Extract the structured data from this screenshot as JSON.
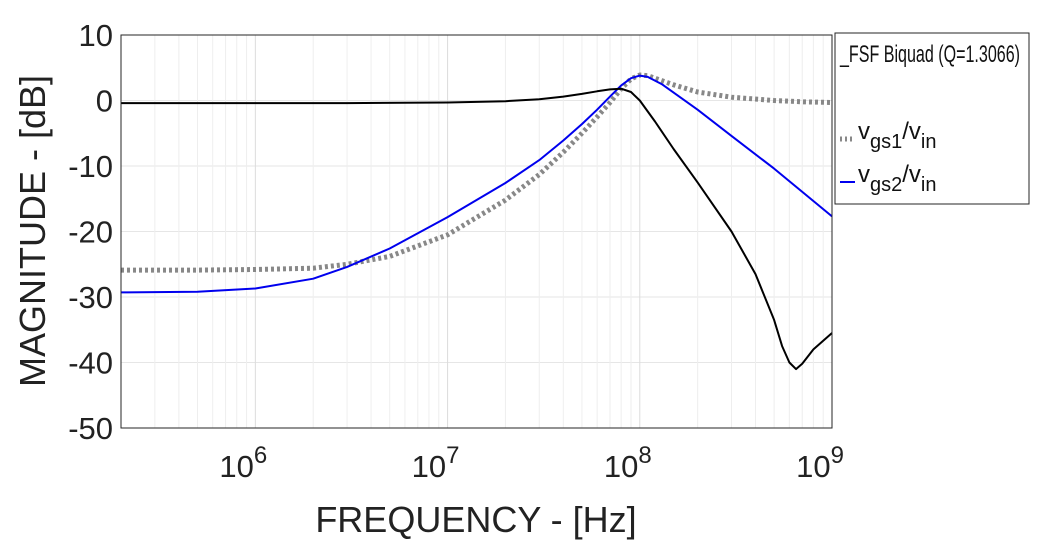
{
  "chart_data": {
    "type": "line",
    "title": "",
    "xlabel": "FREQUENCY - [Hz]",
    "ylabel": "MAGNITUDE - [dB]",
    "xscale": "log",
    "xlim": [
      200000,
      1000000000
    ],
    "ylim": [
      -50,
      10
    ],
    "grid": true,
    "legend_position": "top-right, outside plot",
    "x_ticks": [
      {
        "value": 1000000,
        "base": "10",
        "exp": "6"
      },
      {
        "value": 10000000,
        "base": "10",
        "exp": "7"
      },
      {
        "value": 100000000,
        "base": "10",
        "exp": "8"
      },
      {
        "value": 1000000000,
        "base": "10",
        "exp": "9"
      }
    ],
    "y_ticks": [
      {
        "value": 10,
        "label": "10"
      },
      {
        "value": 0,
        "label": "0"
      },
      {
        "value": -10,
        "label": "-10"
      },
      {
        "value": -20,
        "label": "-20"
      },
      {
        "value": -30,
        "label": "-30"
      },
      {
        "value": -40,
        "label": "-40"
      },
      {
        "value": -50,
        "label": "-50"
      }
    ],
    "series": [
      {
        "name": "_FSF Biquad (Q=1.3066)",
        "color": "#000000",
        "style": "solid",
        "x": [
          200000,
          1000000,
          3000000,
          10000000,
          20000000,
          30000000,
          40000000,
          50000000,
          60000000,
          70000000,
          80000000,
          90000000,
          100000000,
          120000000,
          150000000,
          200000000,
          300000000,
          400000000,
          500000000,
          550000000,
          600000000,
          650000000,
          700000000,
          800000000,
          1000000000
        ],
        "values": [
          -0.4,
          -0.4,
          -0.4,
          -0.3,
          -0.1,
          0.2,
          0.6,
          1.0,
          1.4,
          1.7,
          1.8,
          1.3,
          0.0,
          -3.2,
          -7.4,
          -12.5,
          -20.0,
          -26.5,
          -33.5,
          -37.5,
          -40.0,
          -41.0,
          -40.2,
          -38.0,
          -35.5
        ]
      },
      {
        "name": "v_gs1/v_in",
        "legend_main": "v",
        "legend_sub1": "gs1",
        "legend_slash": "/v",
        "legend_sub2": "in",
        "color": "#888888",
        "style": "dotted-thick",
        "x": [
          200000,
          500000,
          1000000,
          2000000,
          3000000,
          5000000,
          10000000,
          20000000,
          30000000,
          40000000,
          50000000,
          60000000,
          70000000,
          80000000,
          90000000,
          100000000,
          110000000,
          120000000,
          150000000,
          200000000,
          300000000,
          500000000,
          700000000,
          1000000000
        ],
        "values": [
          -25.9,
          -25.9,
          -25.8,
          -25.6,
          -25.0,
          -23.8,
          -20.5,
          -15.2,
          -11.3,
          -7.9,
          -5.0,
          -2.5,
          -0.3,
          1.8,
          3.3,
          3.9,
          3.8,
          3.4,
          2.4,
          1.3,
          0.5,
          0.0,
          -0.2,
          -0.3
        ]
      },
      {
        "name": "v_gs2/v_in",
        "legend_main": "v",
        "legend_sub1": "gs2",
        "legend_slash": "/v",
        "legend_sub2": "in",
        "color": "#0000ee",
        "style": "solid",
        "x": [
          200000,
          500000,
          1000000,
          2000000,
          3000000,
          5000000,
          10000000,
          20000000,
          30000000,
          40000000,
          50000000,
          60000000,
          70000000,
          80000000,
          90000000,
          100000000,
          110000000,
          130000000,
          150000000,
          200000000,
          300000000,
          500000000,
          1000000000
        ],
        "values": [
          -29.3,
          -29.2,
          -28.7,
          -27.2,
          -25.4,
          -22.6,
          -17.8,
          -12.6,
          -9.1,
          -6.1,
          -3.6,
          -1.4,
          0.6,
          2.3,
          3.4,
          3.8,
          3.6,
          2.5,
          1.2,
          -1.4,
          -5.4,
          -10.4,
          -17.7
        ]
      }
    ]
  }
}
